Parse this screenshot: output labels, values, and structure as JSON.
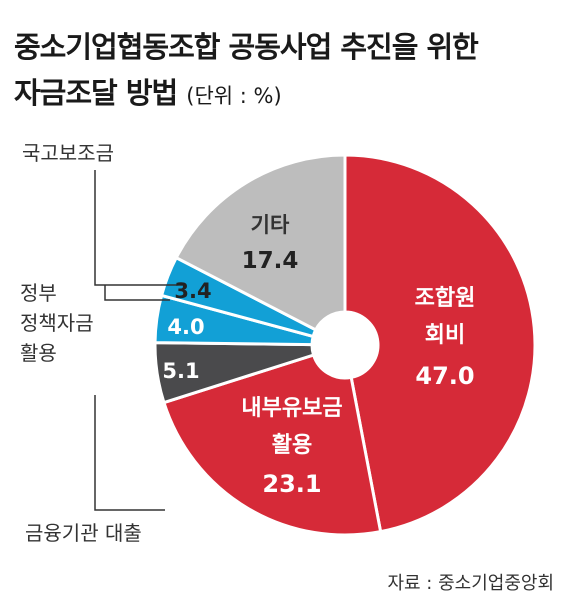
{
  "title_line1": "중소기업협동조합 공동사업 추진을 위한",
  "title_line2": "자금조달 방법",
  "unit": "(단위 : %)",
  "source": "자료 : 중소기업중앙회",
  "chart_data": {
    "type": "pie",
    "title": "중소기업협동조합 공동사업 추진을 위한 자금조달 방법",
    "unit": "%",
    "start_angle_deg": 0,
    "direction": "clockwise",
    "donut": true,
    "slices": [
      {
        "key": "s1",
        "label": "조합원 회비",
        "value": 47.0,
        "color": "#d62a38"
      },
      {
        "key": "s2",
        "label": "내부유보금 활용",
        "value": 23.1,
        "color": "#d62a38"
      },
      {
        "key": "s3",
        "label": "금융기관 대출",
        "value": 5.1,
        "color": "#4a4a4c"
      },
      {
        "key": "s4",
        "label": "정부 정책자금 활용",
        "value": 4.0,
        "color": "#12a0d6"
      },
      {
        "key": "s5",
        "label": "국고보조금",
        "value": 3.4,
        "color": "#12a0d6"
      },
      {
        "key": "s6",
        "label": "기타",
        "value": 17.4,
        "color": "#bdbdbd"
      }
    ],
    "labels": {
      "s1_line1": "조합원",
      "s1_line2": "회비",
      "s1_value": "47.0",
      "s2_line1": "내부유보금",
      "s2_line2": "활용",
      "s2_value": "23.1",
      "s3_value": "5.1",
      "s4_value": "4.0",
      "s5_value": "3.4",
      "s6_line1": "기타",
      "s6_value": "17.4",
      "ext_s5": "국고보조금",
      "ext_s4_line1": "정부",
      "ext_s4_line2": "정책자금",
      "ext_s4_line3": "활용",
      "ext_s3": "금융기관 대출"
    }
  }
}
